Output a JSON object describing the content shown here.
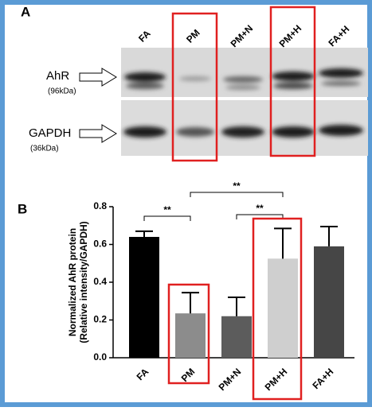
{
  "panel_a": {
    "label": "A",
    "lanes": [
      "FA",
      "PM",
      "PM+N",
      "PM+H",
      "FA+H"
    ],
    "rows": [
      {
        "name": "AhR",
        "size": "(96kDa)"
      },
      {
        "name": "GAPDH",
        "size": "(36kDa)"
      }
    ]
  },
  "chart_data": {
    "type": "bar",
    "label": "B",
    "y_label": [
      "Normalized AhR protein",
      "(Relative intensity/GAPDH)"
    ],
    "categories": [
      "FA",
      "PM",
      "PM+N",
      "PM+H",
      "FA+H"
    ],
    "values": [
      0.64,
      0.235,
      0.22,
      0.525,
      0.59
    ],
    "errors": [
      0.03,
      0.11,
      0.1,
      0.16,
      0.105
    ],
    "colors": [
      "#000000",
      "#8c8c8c",
      "#5c5c5c",
      "#cfcfcf",
      "#464646"
    ],
    "ylim": [
      0,
      0.8
    ],
    "yticks": [
      {
        "value": 0,
        "label": "0.0"
      },
      0.2,
      0.4,
      0.6,
      0.8
    ],
    "significance": [
      {
        "from": "FA",
        "to": "PM",
        "label": "**"
      },
      {
        "from": "PM",
        "to": "PM+H",
        "label": "**"
      },
      {
        "from": "PM+N",
        "to": "PM+H",
        "label": "**"
      }
    ]
  }
}
